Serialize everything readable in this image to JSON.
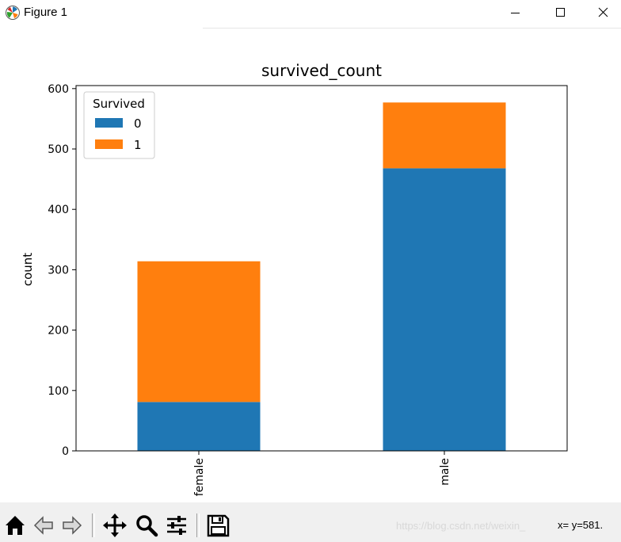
{
  "window": {
    "title": "Figure 1",
    "icon": "matplotlib-logo-icon",
    "controls": [
      "minimize-icon",
      "maximize-icon",
      "close-icon"
    ]
  },
  "toolbar": {
    "buttons": [
      "home-icon",
      "back-arrow-icon",
      "forward-arrow-icon",
      "pan-move-icon",
      "zoom-magnifier-icon",
      "configure-subplots-icon",
      "save-floppy-icon"
    ],
    "coords_text": "x= y=581.",
    "watermark": "https://blog.csdn.net/weixin_"
  },
  "chart_data": {
    "type": "bar",
    "stacked": true,
    "title": "survived_count",
    "xlabel": "",
    "ylabel": "count",
    "categories": [
      "female",
      "male"
    ],
    "series": [
      {
        "name": "0",
        "values": [
          81,
          468
        ],
        "color": "#1f77b4"
      },
      {
        "name": "1",
        "values": [
          233,
          109
        ],
        "color": "#ff7f0e"
      }
    ],
    "ylim": [
      0,
      605
    ],
    "yticks": [
      0,
      100,
      200,
      300,
      400,
      500,
      600
    ],
    "legend": {
      "title": "Survived",
      "position": "top-left"
    },
    "grid": false
  }
}
